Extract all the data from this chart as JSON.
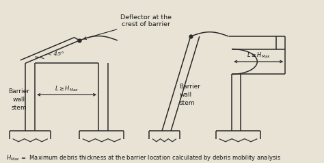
{
  "fig_width": 4.74,
  "fig_height": 2.38,
  "dpi": 100,
  "line_color": "#2a2a2a",
  "line_width": 1.1,
  "bg_color": "#e8e3d5",
  "text_color": "#1a1a1a",
  "annotation_top": "Deflector at the\ncrest of barrier",
  "label_left": "Barrier\nwall\nstem",
  "label_right": "Barrier\nwall\nstem",
  "angle_label": "< 45°",
  "footnote": "$H_{Max}$ =  Maximum debris thickness at the barrier location calculated by debris mobility analysis"
}
